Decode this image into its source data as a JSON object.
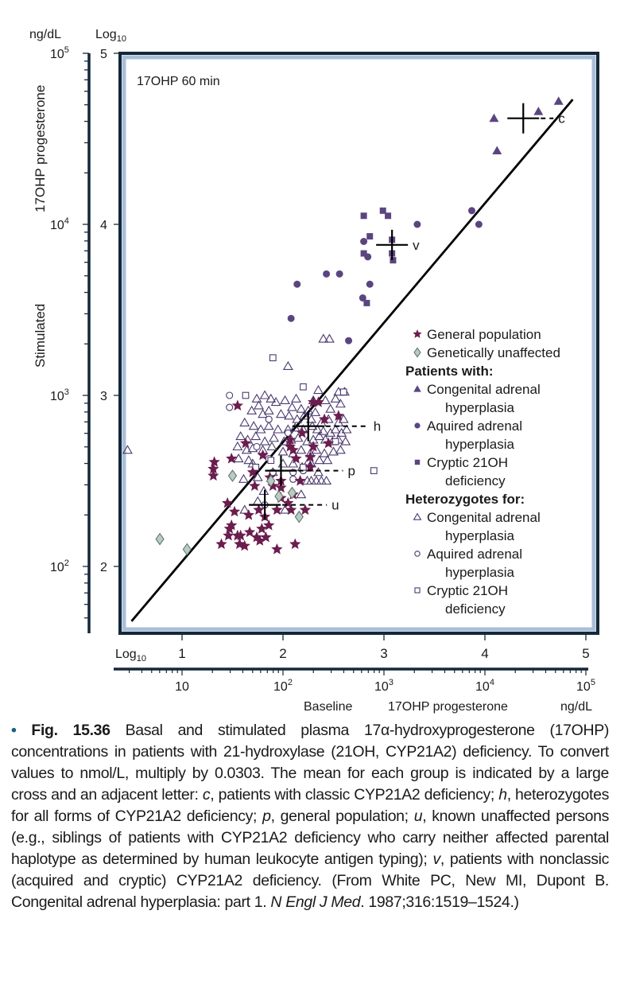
{
  "chart_data": {
    "type": "scatter",
    "title": "17OHP 60 min",
    "xlabel": "Baseline 17OHP progesterone",
    "xlabel_parts": [
      "Baseline",
      "17OHP progesterone",
      "ng/dL"
    ],
    "ylabel": "Stimulated 17OHP progesterone",
    "ylabel_parts": [
      "Stimulated",
      "17OHP progesterone"
    ],
    "x_unit_label": "ng/dL",
    "y_unit_label": "ng/dL",
    "log_label": "Log",
    "log_sub": "10",
    "x_scale": "log10",
    "y_scale": "log10",
    "xlim_log": [
      0.4,
      5.1
    ],
    "ylim_log": [
      1.6,
      5.0
    ],
    "x_log_ticks": [
      "1",
      "2",
      "3",
      "4",
      "5"
    ],
    "y_log_ticks": [
      "2",
      "3",
      "4",
      "5"
    ],
    "x_ng_ticks": [
      {
        "base": "10",
        "exp": ""
      },
      {
        "base": "10",
        "exp": "2"
      },
      {
        "base": "10",
        "exp": "3"
      },
      {
        "base": "10",
        "exp": "4"
      },
      {
        "base": "10",
        "exp": "5"
      }
    ],
    "y_ng_ticks": [
      {
        "base": "10",
        "exp": "2"
      },
      {
        "base": "10",
        "exp": "3"
      },
      {
        "base": "10",
        "exp": "4"
      },
      {
        "base": "10",
        "exp": "5"
      }
    ],
    "grid": false,
    "legend_position": "right-center-inside",
    "regression_line": {
      "x_log": [
        0.5,
        4.87
      ],
      "y_log": [
        1.68,
        4.73
      ]
    },
    "legend": [
      {
        "type": "item",
        "marker": "star",
        "label": [
          "General population"
        ]
      },
      {
        "type": "item",
        "marker": "diamond",
        "label": [
          "Genetically unaffected"
        ]
      },
      {
        "type": "header",
        "label": [
          "Patients with:"
        ]
      },
      {
        "type": "item",
        "marker": "triangle-filled",
        "label": [
          "Congenital adrenal",
          "hyperplasia"
        ]
      },
      {
        "type": "item",
        "marker": "circle-filled",
        "label": [
          "Aquired adrenal",
          "hyperplasia"
        ]
      },
      {
        "type": "item",
        "marker": "square-filled",
        "label": [
          "Cryptic 21OH",
          "deficiency"
        ]
      },
      {
        "type": "header",
        "label": [
          "Heterozygotes for:"
        ]
      },
      {
        "type": "item",
        "marker": "triangle-open",
        "label": [
          "Congenital adrenal",
          "hyperplasia"
        ]
      },
      {
        "type": "item",
        "marker": "circle-open",
        "label": [
          "Aquired adrenal",
          "hyperplasia"
        ]
      },
      {
        "type": "item",
        "marker": "square-open",
        "label": [
          "Cryptic 21OH",
          "deficiency"
        ]
      }
    ],
    "colors": {
      "star": "#6b1d4e",
      "diamond_fill": "#b9cbc2",
      "diamond_stroke": "#5a6f66",
      "patient": "#5b4580",
      "hetero_stroke": "#4a3a6e",
      "frame_dark": "#14283a",
      "frame_light": "#a9bfd8",
      "axis": "#14283a"
    },
    "means": [
      {
        "label": "c",
        "x_log": 4.38,
        "y_log": 4.62
      },
      {
        "label": "v",
        "x_log": 3.08,
        "y_log": 3.88
      },
      {
        "label": "h",
        "x_log": 2.25,
        "y_log": 2.82
      },
      {
        "label": "p",
        "x_log": 1.98,
        "y_log": 2.56
      },
      {
        "label": "u",
        "x_log": 1.82,
        "y_log": 2.36
      }
    ],
    "series": [
      {
        "name": "General population",
        "marker": "star",
        "points": [
          [
            1.32,
            2.61
          ],
          [
            1.31,
            2.57
          ],
          [
            1.31,
            2.53
          ],
          [
            1.49,
            2.63
          ],
          [
            1.55,
            2.94
          ],
          [
            1.63,
            2.72
          ],
          [
            1.8,
            2.65
          ],
          [
            1.7,
            2.55
          ],
          [
            1.72,
            2.47
          ],
          [
            1.9,
            2.47
          ],
          [
            1.98,
            2.5
          ],
          [
            1.98,
            2.46
          ],
          [
            2.07,
            2.74
          ],
          [
            2.07,
            2.7
          ],
          [
            2.13,
            2.63
          ],
          [
            2.27,
            2.64
          ],
          [
            2.3,
            2.96
          ],
          [
            2.35,
            2.96
          ],
          [
            2.41,
            2.86
          ],
          [
            2.55,
            2.88
          ],
          [
            2.45,
            2.72
          ],
          [
            2.3,
            2.7
          ],
          [
            2.17,
            2.5
          ],
          [
            2.1,
            2.42
          ],
          [
            2.08,
            2.33
          ],
          [
            1.94,
            2.33
          ],
          [
            1.98,
            2.4
          ],
          [
            2.05,
            2.37
          ],
          [
            1.45,
            2.37
          ],
          [
            1.52,
            2.32
          ],
          [
            1.49,
            2.24
          ],
          [
            1.66,
            2.3
          ],
          [
            1.76,
            2.33
          ],
          [
            1.82,
            2.29
          ],
          [
            1.86,
            2.24
          ],
          [
            1.55,
            2.18
          ],
          [
            1.47,
            2.22
          ],
          [
            1.46,
            2.18
          ],
          [
            1.58,
            2.18
          ],
          [
            1.67,
            2.2
          ],
          [
            1.74,
            2.17
          ],
          [
            1.77,
            2.15
          ],
          [
            1.39,
            2.13
          ],
          [
            1.57,
            2.13
          ],
          [
            1.62,
            2.12
          ],
          [
            1.83,
            2.17
          ],
          [
            1.79,
            2.22
          ],
          [
            1.94,
            2.1
          ],
          [
            2.12,
            2.13
          ],
          [
            2.22,
            2.33
          ],
          [
            2.27,
            2.58
          ],
          [
            2.19,
            2.78
          ],
          [
            2.1,
            2.68
          ],
          [
            1.87,
            2.52
          ]
        ]
      },
      {
        "name": "Genetically unaffected",
        "marker": "diamond",
        "points": [
          [
            0.78,
            2.16
          ],
          [
            1.05,
            2.1
          ],
          [
            1.5,
            2.53
          ],
          [
            1.88,
            2.5
          ],
          [
            2.09,
            2.43
          ],
          [
            2.16,
            2.29
          ],
          [
            1.96,
            2.41
          ]
        ]
      },
      {
        "name": "Patients with: Congenital adrenal hyperplasia",
        "marker": "triangle-filled",
        "points": [
          [
            4.09,
            4.62
          ],
          [
            4.73,
            4.72
          ],
          [
            4.53,
            4.66
          ],
          [
            4.12,
            4.43
          ]
        ]
      },
      {
        "name": "Patients with: Aquired adrenal hyperplasia",
        "marker": "circle-filled",
        "points": [
          [
            3.87,
            4.08
          ],
          [
            3.94,
            4.0
          ],
          [
            3.33,
            4.0
          ],
          [
            2.8,
            3.9
          ],
          [
            2.84,
            3.81
          ],
          [
            2.14,
            3.65
          ],
          [
            2.43,
            3.71
          ],
          [
            2.56,
            3.71
          ],
          [
            2.86,
            3.65
          ],
          [
            2.79,
            3.57
          ],
          [
            2.08,
            3.45
          ],
          [
            2.65,
            3.32
          ]
        ]
      },
      {
        "name": "Patients with: Cryptic 21OH deficiency",
        "marker": "square-filled",
        "points": [
          [
            2.99,
            4.08
          ],
          [
            2.8,
            4.05
          ],
          [
            3.04,
            4.05
          ],
          [
            2.86,
            3.93
          ],
          [
            2.8,
            3.83
          ],
          [
            3.08,
            3.83
          ],
          [
            3.08,
            3.91
          ],
          [
            3.09,
            3.79
          ],
          [
            2.83,
            3.54
          ]
        ]
      }
    ]
  },
  "caption": {
    "fig_label": "Fig. 15.36",
    "segments": [
      {
        "t": " Basal and stimulated plasma 17α-hydroxyprogesterone (17OHP) concentrations in patients with 21-hydroxylase (21OH, CYP21A2) deficiency. To convert values to nmol/L, multiply by 0.0303. The mean for each group is indicated by a large cross and an adjacent letter: ",
        "i": false
      },
      {
        "t": "c",
        "i": true
      },
      {
        "t": ", patients with classic CYP21A2 deficiency; ",
        "i": false
      },
      {
        "t": "h",
        "i": true
      },
      {
        "t": ", heterozygotes for all forms of CYP21A2 deficiency; ",
        "i": false
      },
      {
        "t": "p",
        "i": true
      },
      {
        "t": ", general population; ",
        "i": false
      },
      {
        "t": "u",
        "i": true
      },
      {
        "t": ", known unaffected persons (e.g., siblings of patients with CYP21A2 deficiency who carry neither affected parental haplotype as determined by human leukocyte antigen typing); ",
        "i": false
      },
      {
        "t": "v",
        "i": true
      },
      {
        "t": ", patients with nonclassic (acquired and cryptic) CYP21A2 deficiency. (From White PC, New MI, Dupont B. Congenital adrenal hyperplasia: part 1. ",
        "i": false
      },
      {
        "t": "N Engl J Med",
        "i": true
      },
      {
        "t": ". 1987;316:1519–1524.)",
        "i": false
      }
    ]
  },
  "heterozygote_points": {
    "triangle-open": [
      [
        0.46,
        2.68
      ],
      [
        2.35,
        3.03
      ],
      [
        2.4,
        3.33
      ],
      [
        2.46,
        3.33
      ],
      [
        2.05,
        3.17
      ],
      [
        2.13,
        2.98
      ],
      [
        2.3,
        2.97
      ],
      [
        2.42,
        2.97
      ],
      [
        1.74,
        2.98
      ],
      [
        1.82,
        3.0
      ],
      [
        1.88,
        2.98
      ],
      [
        1.93,
        2.96
      ],
      [
        2.02,
        2.97
      ],
      [
        2.09,
        2.93
      ],
      [
        2.18,
        2.92
      ],
      [
        2.25,
        2.91
      ],
      [
        2.32,
        2.9
      ],
      [
        2.47,
        2.92
      ],
      [
        2.52,
        2.98
      ],
      [
        2.55,
        3.02
      ],
      [
        2.61,
        3.02
      ],
      [
        2.57,
        2.95
      ],
      [
        1.69,
        2.91
      ],
      [
        1.76,
        2.94
      ],
      [
        1.8,
        2.89
      ],
      [
        1.86,
        2.91
      ],
      [
        1.98,
        2.89
      ],
      [
        2.06,
        2.88
      ],
      [
        2.14,
        2.86
      ],
      [
        2.21,
        2.88
      ],
      [
        2.28,
        2.86
      ],
      [
        2.38,
        2.84
      ],
      [
        2.45,
        2.86
      ],
      [
        2.55,
        2.84
      ],
      [
        2.6,
        2.86
      ],
      [
        1.62,
        2.84
      ],
      [
        1.71,
        2.82
      ],
      [
        1.78,
        2.8
      ],
      [
        1.86,
        2.82
      ],
      [
        1.95,
        2.8
      ],
      [
        2.05,
        2.8
      ],
      [
        2.12,
        2.81
      ],
      [
        2.2,
        2.8
      ],
      [
        2.29,
        2.82
      ],
      [
        2.34,
        2.8
      ],
      [
        2.4,
        2.79
      ],
      [
        2.47,
        2.78
      ],
      [
        2.52,
        2.8
      ],
      [
        2.58,
        2.78
      ],
      [
        2.63,
        2.8
      ],
      [
        1.58,
        2.76
      ],
      [
        1.65,
        2.74
      ],
      [
        1.73,
        2.76
      ],
      [
        1.82,
        2.73
      ],
      [
        1.91,
        2.75
      ],
      [
        2.01,
        2.73
      ],
      [
        2.08,
        2.74
      ],
      [
        2.15,
        2.75
      ],
      [
        2.24,
        2.73
      ],
      [
        2.3,
        2.74
      ],
      [
        2.36,
        2.76
      ],
      [
        2.42,
        2.74
      ],
      [
        2.49,
        2.73
      ],
      [
        2.55,
        2.74
      ],
      [
        2.62,
        2.73
      ],
      [
        1.55,
        2.7
      ],
      [
        1.64,
        2.68
      ],
      [
        1.7,
        2.69
      ],
      [
        1.8,
        2.68
      ],
      [
        1.89,
        2.7
      ],
      [
        2.0,
        2.67
      ],
      [
        2.1,
        2.66
      ],
      [
        2.18,
        2.68
      ],
      [
        2.27,
        2.66
      ],
      [
        2.33,
        2.68
      ],
      [
        2.41,
        2.66
      ],
      [
        2.5,
        2.67
      ],
      [
        2.57,
        2.68
      ],
      [
        2.44,
        2.62
      ],
      [
        2.36,
        2.62
      ],
      [
        2.25,
        2.61
      ],
      [
        1.56,
        2.63
      ],
      [
        1.66,
        2.62
      ],
      [
        1.61,
        2.51
      ],
      [
        1.75,
        2.52
      ],
      [
        1.9,
        2.55
      ],
      [
        2.0,
        2.6
      ],
      [
        2.1,
        2.6
      ],
      [
        2.19,
        2.58
      ],
      [
        2.28,
        2.6
      ],
      [
        2.35,
        2.55
      ],
      [
        2.24,
        2.5
      ],
      [
        2.28,
        2.5
      ],
      [
        2.33,
        2.5
      ],
      [
        2.38,
        2.5
      ],
      [
        2.43,
        2.5
      ],
      [
        1.62,
        2.33
      ],
      [
        2.02,
        2.33
      ],
      [
        1.75,
        2.38
      ],
      [
        1.81,
        2.44
      ],
      [
        2.18,
        2.42
      ],
      [
        1.7,
        2.6
      ]
    ],
    "circle-open": [
      [
        1.47,
        3.0
      ],
      [
        1.47,
        2.93
      ],
      [
        1.86,
        2.86
      ],
      [
        1.74,
        2.7
      ],
      [
        1.86,
        2.63
      ],
      [
        2.2,
        2.56
      ],
      [
        2.1,
        2.55
      ],
      [
        1.9,
        2.55
      ],
      [
        2.05,
        2.78
      ],
      [
        1.82,
        2.36
      ],
      [
        2.1,
        2.51
      ]
    ],
    "square-open": [
      [
        1.9,
        3.22
      ],
      [
        2.2,
        3.05
      ],
      [
        1.63,
        3.0
      ],
      [
        2.6,
        3.02
      ],
      [
        1.88,
        2.62
      ],
      [
        2.2,
        2.58
      ],
      [
        2.52,
        2.73
      ],
      [
        2.9,
        2.56
      ],
      [
        1.73,
        2.58
      ]
    ]
  }
}
